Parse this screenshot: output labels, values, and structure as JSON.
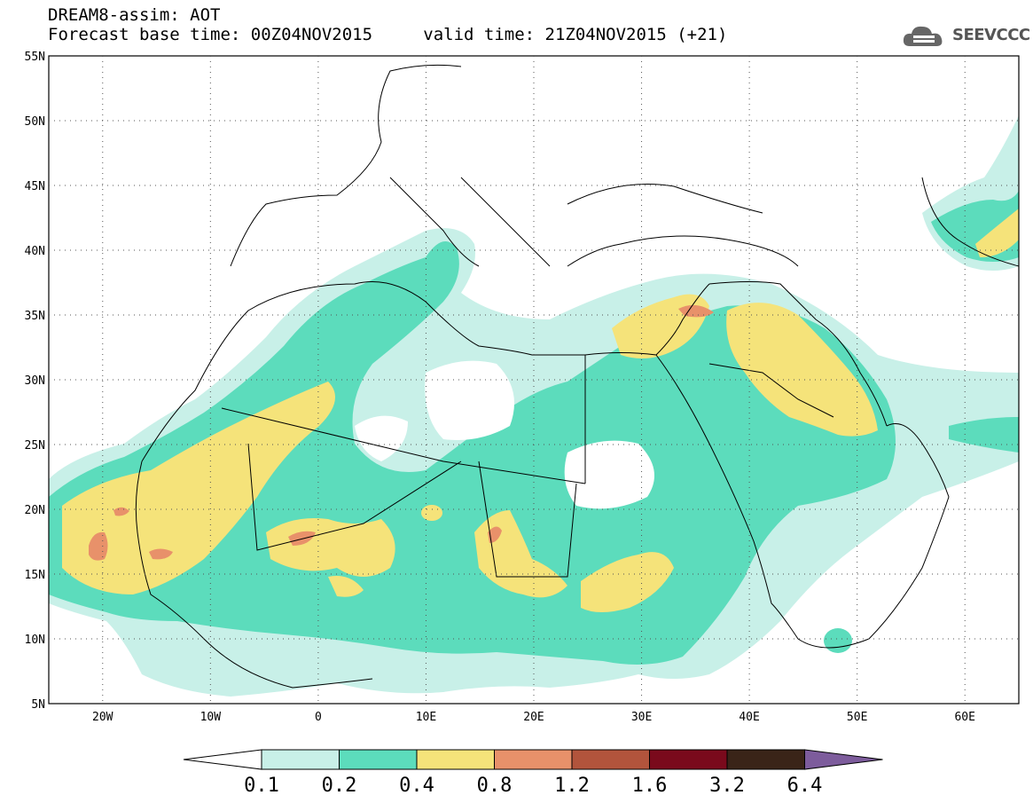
{
  "header": {
    "title": "DREAM8-assim: AOT",
    "forecast_base": "Forecast base time: 00Z04NOV2015",
    "valid_time": "valid time: 21Z04NOV2015 (+21)"
  },
  "logo": {
    "text": "SEEVCCC",
    "icon": "cloud-icon"
  },
  "map": {
    "lat_ticks": [
      "55N",
      "50N",
      "45N",
      "40N",
      "35N",
      "30N",
      "25N",
      "20N",
      "15N",
      "10N",
      "5N"
    ],
    "lon_ticks": [
      "20W",
      "10W",
      "0",
      "10E",
      "20E",
      "30E",
      "40E",
      "50E",
      "60E"
    ],
    "lon_range": [
      -25,
      65
    ],
    "lat_range": [
      5,
      55
    ]
  },
  "colorbar": {
    "levels": [
      "0.1",
      "0.2",
      "0.4",
      "0.8",
      "1.2",
      "1.6",
      "3.2",
      "6.4"
    ],
    "colors": [
      "#ffffff",
      "#c8f0e8",
      "#5cdcbc",
      "#f5e37a",
      "#e8916a",
      "#b2543c",
      "#7a0a1c",
      "#3a2418",
      "#7d5c9c"
    ]
  }
}
